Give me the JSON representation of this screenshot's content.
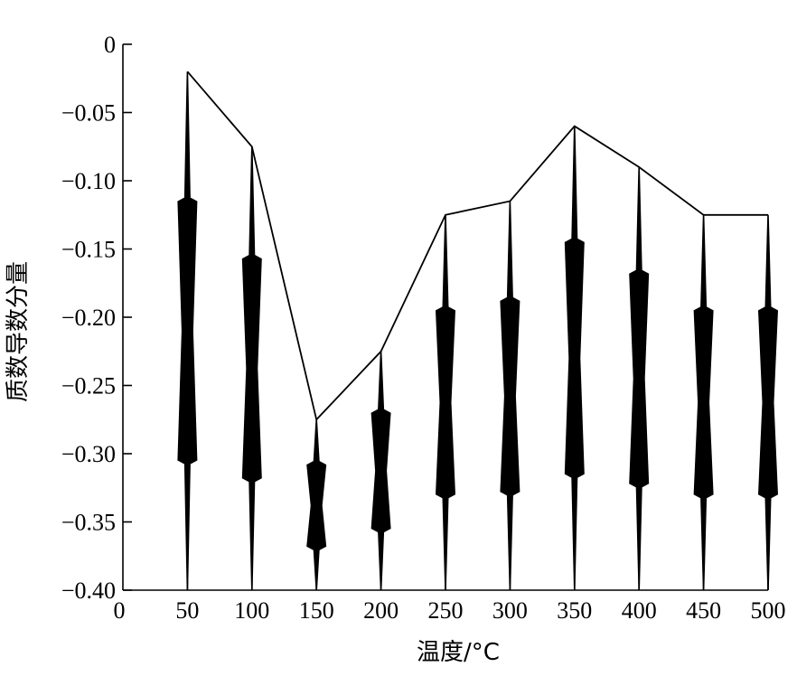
{
  "chart_data": {
    "type": "line",
    "title": "",
    "xlabel": "温度/°C",
    "ylabel": "质数导数分量",
    "xlim": [
      0,
      500
    ],
    "ylim": [
      -0.4,
      0
    ],
    "grid": false,
    "x_ticks": [
      "0",
      "50",
      "100",
      "150",
      "200",
      "250",
      "300",
      "350",
      "400",
      "450",
      "500"
    ],
    "y_ticks": [
      "0",
      "−0.05",
      "−0.10",
      "−0.15",
      "−0.20",
      "−0.25",
      "−0.30",
      "−0.35",
      "−0.40"
    ],
    "series": [
      {
        "x": [
          50,
          100,
          150,
          200,
          250,
          300,
          350,
          400,
          450,
          500
        ],
        "y": [
          -0.02,
          -0.075,
          -0.275,
          -0.225,
          -0.125,
          -0.115,
          -0.06,
          -0.09,
          -0.125,
          -0.125
        ]
      }
    ],
    "distributions": [
      {
        "x": 50,
        "top": -0.02,
        "box_top": -0.115,
        "box_bottom": -0.305,
        "bottom": -0.4
      },
      {
        "x": 100,
        "top": -0.075,
        "box_top": -0.157,
        "box_bottom": -0.318,
        "bottom": -0.4
      },
      {
        "x": 150,
        "top": -0.275,
        "box_top": -0.308,
        "box_bottom": -0.368,
        "bottom": -0.4
      },
      {
        "x": 200,
        "top": -0.225,
        "box_top": -0.27,
        "box_bottom": -0.355,
        "bottom": -0.4
      },
      {
        "x": 250,
        "top": -0.125,
        "box_top": -0.195,
        "box_bottom": -0.33,
        "bottom": -0.4
      },
      {
        "x": 300,
        "top": -0.115,
        "box_top": -0.188,
        "box_bottom": -0.328,
        "bottom": -0.4
      },
      {
        "x": 350,
        "top": -0.06,
        "box_top": -0.145,
        "box_bottom": -0.315,
        "bottom": -0.4
      },
      {
        "x": 400,
        "top": -0.09,
        "box_top": -0.168,
        "box_bottom": -0.322,
        "bottom": -0.4
      },
      {
        "x": 450,
        "top": -0.125,
        "box_top": -0.195,
        "box_bottom": -0.33,
        "bottom": -0.4
      },
      {
        "x": 500,
        "top": -0.125,
        "box_top": -0.195,
        "box_bottom": -0.33,
        "bottom": -0.4
      }
    ]
  }
}
